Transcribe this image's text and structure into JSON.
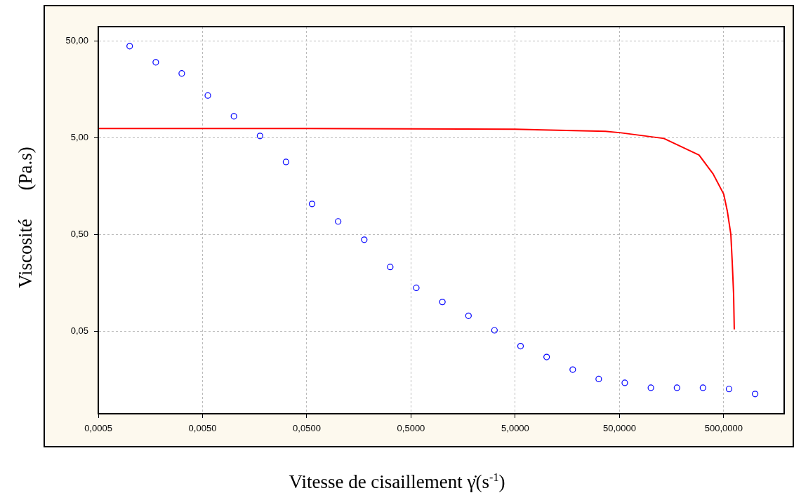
{
  "chart_data": {
    "type": "scatter",
    "xlabel": "Vitesse de cisaillement γ̇(s$^{-1}$)",
    "ylabel": "Viscosité      (Pa.s)",
    "log": "xy",
    "grid": true,
    "legend": false,
    "xlim": [
      0.0005,
      1900
    ],
    "ylim": [
      0.007,
      70
    ],
    "xticks": [
      {
        "value": 0.0005,
        "label": "0,0005"
      },
      {
        "value": 0.005,
        "label": "0,0050"
      },
      {
        "value": 0.05,
        "label": "0,0500"
      },
      {
        "value": 0.5,
        "label": "0,5000"
      },
      {
        "value": 5,
        "label": "5,0000"
      },
      {
        "value": 50,
        "label": "50,0000"
      },
      {
        "value": 500,
        "label": "500,0000"
      }
    ],
    "yticks": [
      {
        "value": 0.05,
        "label": "0,05"
      },
      {
        "value": 0.5,
        "label": "0,50"
      },
      {
        "value": 5,
        "label": "5,00"
      },
      {
        "value": 50,
        "label": "50,00"
      }
    ],
    "series": [
      {
        "type": "scatter",
        "color": "#0000ff",
        "marker": "circle",
        "x": [
          0.001,
          0.00178,
          0.00316,
          0.00562,
          0.01,
          0.0178,
          0.0316,
          0.0562,
          0.1,
          0.178,
          0.316,
          0.562,
          1,
          1.78,
          3.16,
          5.62,
          10,
          17.8,
          31.6,
          56.2,
          100,
          178,
          316,
          562,
          1000
        ],
        "values": [
          44,
          30,
          23,
          13.6,
          8.3,
          5.2,
          2.8,
          1.03,
          0.68,
          0.44,
          0.23,
          0.14,
          0.1,
          0.072,
          0.051,
          0.035,
          0.027,
          0.02,
          0.016,
          0.0146,
          0.013,
          0.013,
          0.013,
          0.0126,
          0.0112
        ]
      },
      {
        "type": "line",
        "color": "#ff0000",
        "marker": "none",
        "x": [
          0.0005,
          0.05,
          5,
          36.6,
          51.6,
          133,
          290,
          396,
          500,
          541,
          585,
          603,
          622,
          631
        ],
        "values": [
          6.2,
          6.2,
          6.1,
          5.8,
          5.6,
          4.9,
          3.3,
          2.1,
          1.3,
          0.87,
          0.5,
          0.26,
          0.12,
          0.052
        ]
      }
    ]
  }
}
